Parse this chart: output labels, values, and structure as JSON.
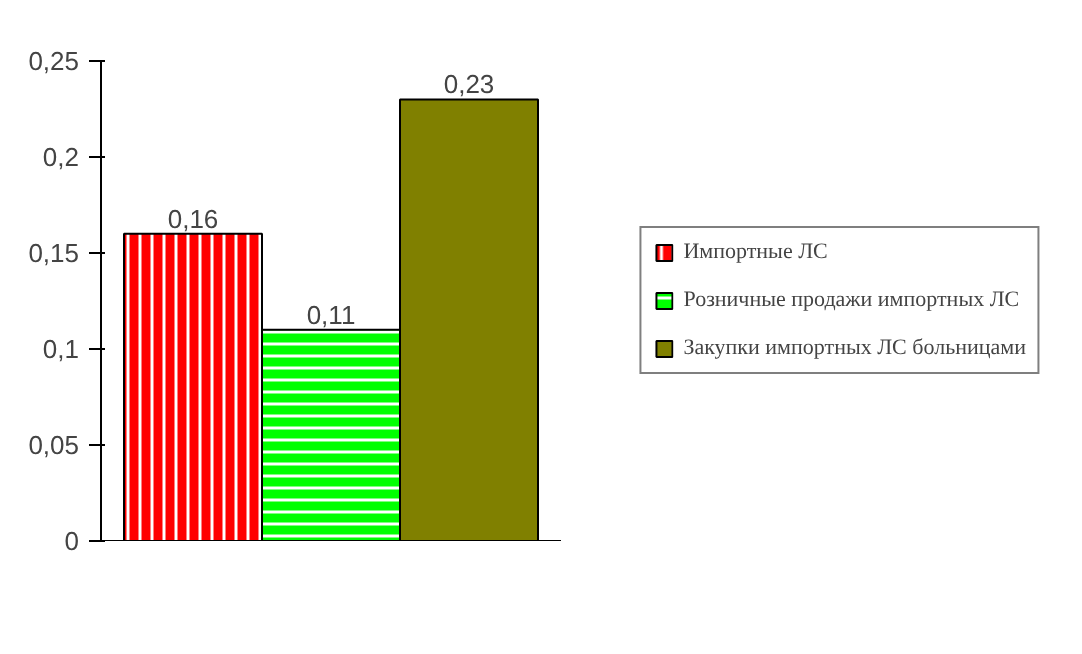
{
  "chart_data": {
    "type": "bar",
    "categories": [
      null
    ],
    "series": [
      {
        "name": "Импортные ЛС",
        "color": "#ff0000",
        "values": [
          0.16
        ],
        "value_labels": [
          "0,16"
        ]
      },
      {
        "name": "Розничные продажи импортных ЛС",
        "color": "#00ff00",
        "values": [
          0.11
        ],
        "value_labels": [
          "0,11"
        ]
      },
      {
        "name": "Закупки импортных ЛС больницами",
        "color": "#808000",
        "values": [
          0.23
        ],
        "value_labels": [
          "0,23"
        ]
      }
    ],
    "ylim": [
      0,
      0.25
    ],
    "yticks": [
      {
        "value": 0,
        "label": "0"
      },
      {
        "value": 0.05,
        "label": "0,05"
      },
      {
        "value": 0.1,
        "label": "0,1"
      },
      {
        "value": 0.15,
        "label": "0,15"
      },
      {
        "value": 0.2,
        "label": "0,2"
      },
      {
        "value": 0.25,
        "label": "0,25"
      }
    ],
    "legend": "right"
  }
}
